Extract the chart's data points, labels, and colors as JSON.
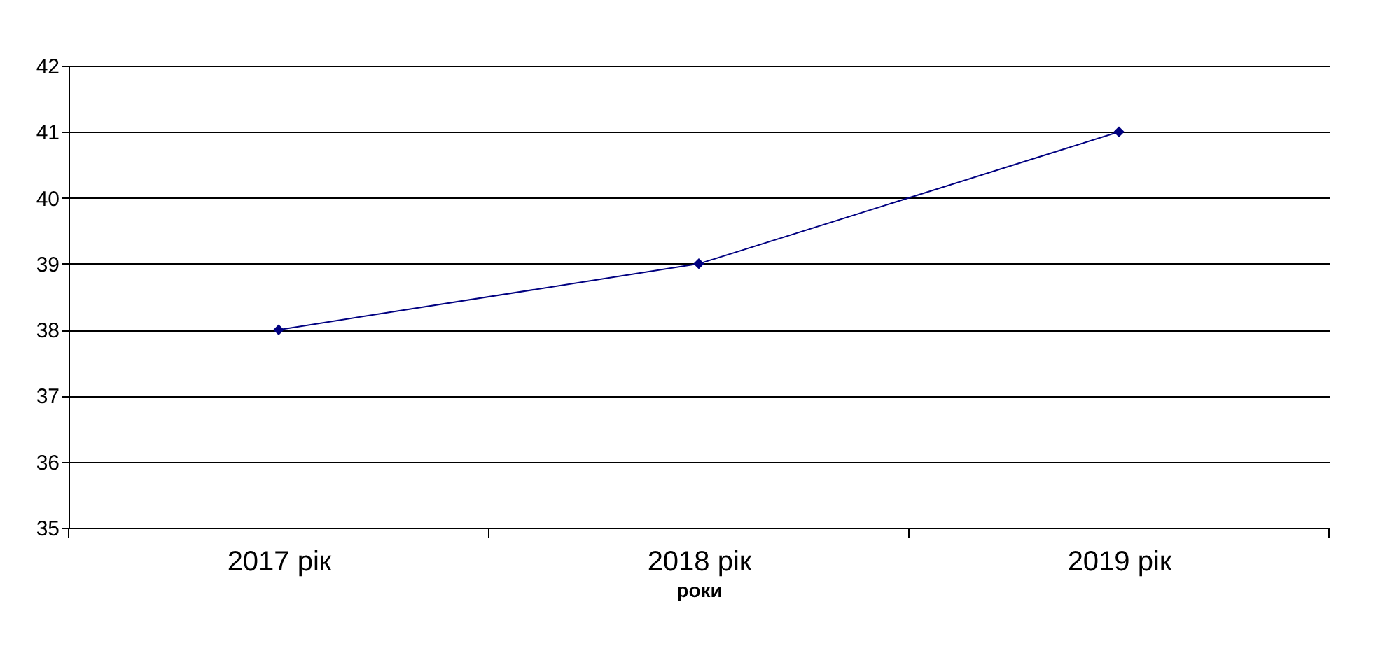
{
  "chart_data": {
    "type": "line",
    "xlabel": "роки",
    "categories": [
      "2017 рік",
      "2018 рік",
      "2019 рік"
    ],
    "series": [
      {
        "color": "#000080",
        "values": [
          38,
          39,
          41
        ]
      }
    ],
    "ylim": [
      35,
      42
    ],
    "yticks": [
      35,
      36,
      37,
      38,
      39,
      40,
      41,
      42
    ],
    "grid": "y",
    "marker": "diamond",
    "line_style": "solid"
  }
}
